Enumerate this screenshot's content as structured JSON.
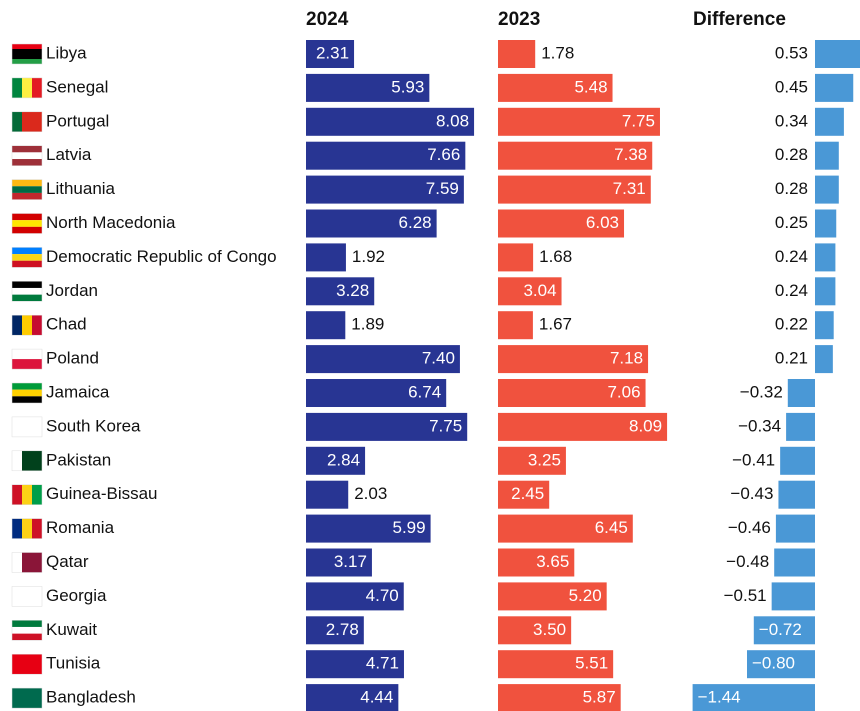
{
  "chart_data": {
    "type": "bar",
    "categories": [
      "Libya",
      "Senegal",
      "Portugal",
      "Latvia",
      "Lithuania",
      "North Macedonia",
      "Democratic Republic of Congo",
      "Jordan",
      "Chad",
      "Poland",
      "Jamaica",
      "South Korea",
      "Pakistan",
      "Guinea-Bissau",
      "Romania",
      "Qatar",
      "Georgia",
      "Kuwait",
      "Tunisia",
      "Bangladesh"
    ],
    "series": [
      {
        "name": "2024",
        "color": "#283593",
        "values": [
          2.31,
          5.93,
          8.08,
          7.66,
          7.59,
          6.28,
          1.92,
          3.28,
          1.89,
          7.4,
          6.74,
          7.75,
          2.84,
          2.03,
          5.99,
          3.17,
          4.7,
          2.78,
          4.71,
          4.44
        ],
        "value_labels": [
          "2.31",
          "5.93",
          "8.08",
          "7.66",
          "7.59",
          "6.28",
          "1.92",
          "3.28",
          "1.89",
          "7.40",
          "6.74",
          "7.75",
          "2.84",
          "2.03",
          "5.99",
          "3.17",
          "4.70",
          "2.78",
          "4.71",
          "4.44"
        ]
      },
      {
        "name": "2023",
        "color": "#f0523e",
        "values": [
          1.78,
          5.48,
          7.75,
          7.38,
          7.31,
          6.03,
          1.68,
          3.04,
          1.67,
          7.18,
          7.06,
          8.09,
          3.25,
          2.45,
          6.45,
          3.65,
          5.2,
          3.5,
          5.51,
          5.87
        ],
        "value_labels": [
          "1.78",
          "5.48",
          "7.75",
          "7.38",
          "7.31",
          "6.03",
          "1.68",
          "3.04",
          "1.67",
          "7.18",
          "7.06",
          "8.09",
          "3.25",
          "2.45",
          "6.45",
          "3.65",
          "5.20",
          "3.50",
          "5.51",
          "5.87"
        ]
      },
      {
        "name": "Difference",
        "color": "#4a98d6",
        "values": [
          0.53,
          0.45,
          0.34,
          0.28,
          0.28,
          0.25,
          0.24,
          0.24,
          0.22,
          0.21,
          -0.32,
          -0.34,
          -0.41,
          -0.43,
          -0.46,
          -0.48,
          -0.51,
          -0.72,
          -0.8,
          -1.44
        ],
        "value_labels": [
          "0.53",
          "0.45",
          "0.34",
          "0.28",
          "0.28",
          "0.25",
          "0.24",
          "0.24",
          "0.22",
          "0.21",
          "−0.32",
          "−0.34",
          "−0.41",
          "−0.43",
          "−0.46",
          "−0.48",
          "−0.51",
          "−0.72",
          "−0.80",
          "−1.44"
        ]
      }
    ]
  }
}
